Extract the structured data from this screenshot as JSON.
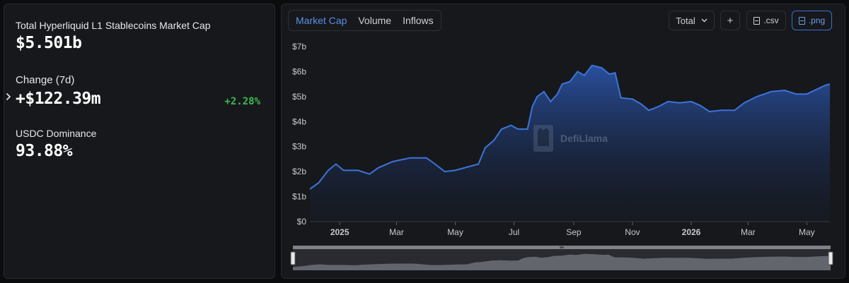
{
  "stats": {
    "market_cap_label": "Total Hyperliquid L1 Stablecoins Market Cap",
    "market_cap_value": "$5.501b",
    "change_label": "Change (7d)",
    "change_value": "+$122.39m",
    "change_pct": "+2.28%",
    "dominance_label": "USDC Dominance",
    "dominance_value": "93.88%"
  },
  "toolbar": {
    "tabs": [
      "Market Cap",
      "Volume",
      "Inflows"
    ],
    "active_tab": 0,
    "total_label": "Total",
    "plus_label": "+",
    "csv_label": ".csv",
    "png_label": ".png"
  },
  "watermark": "DefiLlama",
  "colors": {
    "accent": "#3d74d9",
    "positive": "#3fb950"
  },
  "chart_data": {
    "type": "area",
    "ylim": [
      0,
      7
    ],
    "y_unit": "b",
    "y_ticks": [
      "$0",
      "$1b",
      "$2b",
      "$3b",
      "$4b",
      "$5b",
      "$6b",
      "$7b"
    ],
    "x_ticks": [
      {
        "date": "2025-01-01",
        "label": "2025",
        "bold": true
      },
      {
        "date": "2025-03-01",
        "label": "Mar"
      },
      {
        "date": "2025-05-01",
        "label": "May"
      },
      {
        "date": "2025-07-01",
        "label": "Jul"
      },
      {
        "date": "2025-09-01",
        "label": "Sep"
      },
      {
        "date": "2025-11-01",
        "label": "Nov"
      },
      {
        "date": "2026-01-01",
        "label": "2026",
        "bold": true
      },
      {
        "date": "2026-03-01",
        "label": "Mar"
      },
      {
        "date": "2026-05-01",
        "label": "May"
      }
    ],
    "xlim": [
      "2024-12-01",
      "2026-05-25"
    ],
    "series": [
      {
        "points": [
          [
            "2024-12-01",
            1.3
          ],
          [
            "2024-12-10",
            1.55
          ],
          [
            "2024-12-20",
            2.05
          ],
          [
            "2024-12-28",
            2.3
          ],
          [
            "2025-01-05",
            2.05
          ],
          [
            "2025-01-20",
            2.05
          ],
          [
            "2025-02-01",
            1.9
          ],
          [
            "2025-02-10",
            2.15
          ],
          [
            "2025-02-25",
            2.4
          ],
          [
            "2025-03-15",
            2.55
          ],
          [
            "2025-04-01",
            2.55
          ],
          [
            "2025-04-10",
            2.3
          ],
          [
            "2025-04-20",
            2.0
          ],
          [
            "2025-05-01",
            2.05
          ],
          [
            "2025-05-15",
            2.2
          ],
          [
            "2025-05-25",
            2.3
          ],
          [
            "2025-06-01",
            2.95
          ],
          [
            "2025-06-10",
            3.25
          ],
          [
            "2025-06-18",
            3.7
          ],
          [
            "2025-06-28",
            3.85
          ],
          [
            "2025-07-05",
            3.7
          ],
          [
            "2025-07-15",
            3.7
          ],
          [
            "2025-07-20",
            4.6
          ],
          [
            "2025-07-25",
            5.0
          ],
          [
            "2025-08-01",
            5.2
          ],
          [
            "2025-08-08",
            4.8
          ],
          [
            "2025-08-15",
            5.1
          ],
          [
            "2025-08-20",
            5.5
          ],
          [
            "2025-08-28",
            5.6
          ],
          [
            "2025-09-05",
            6.0
          ],
          [
            "2025-09-12",
            5.85
          ],
          [
            "2025-09-20",
            6.25
          ],
          [
            "2025-09-30",
            6.15
          ],
          [
            "2025-10-08",
            5.9
          ],
          [
            "2025-10-14",
            5.95
          ],
          [
            "2025-10-20",
            4.95
          ],
          [
            "2025-11-01",
            4.9
          ],
          [
            "2025-11-10",
            4.7
          ],
          [
            "2025-11-18",
            4.45
          ],
          [
            "2025-11-28",
            4.6
          ],
          [
            "2025-12-08",
            4.8
          ],
          [
            "2025-12-20",
            4.75
          ],
          [
            "2026-01-01",
            4.8
          ],
          [
            "2026-01-10",
            4.65
          ],
          [
            "2026-01-20",
            4.4
          ],
          [
            "2026-02-01",
            4.45
          ],
          [
            "2026-02-15",
            4.45
          ],
          [
            "2026-02-25",
            4.75
          ],
          [
            "2026-03-10",
            5.0
          ],
          [
            "2026-03-25",
            5.2
          ],
          [
            "2026-04-08",
            5.25
          ],
          [
            "2026-04-20",
            5.1
          ],
          [
            "2026-05-01",
            5.1
          ],
          [
            "2026-05-12",
            5.3
          ],
          [
            "2026-05-20",
            5.45
          ],
          [
            "2026-05-25",
            5.5
          ]
        ]
      }
    ]
  }
}
